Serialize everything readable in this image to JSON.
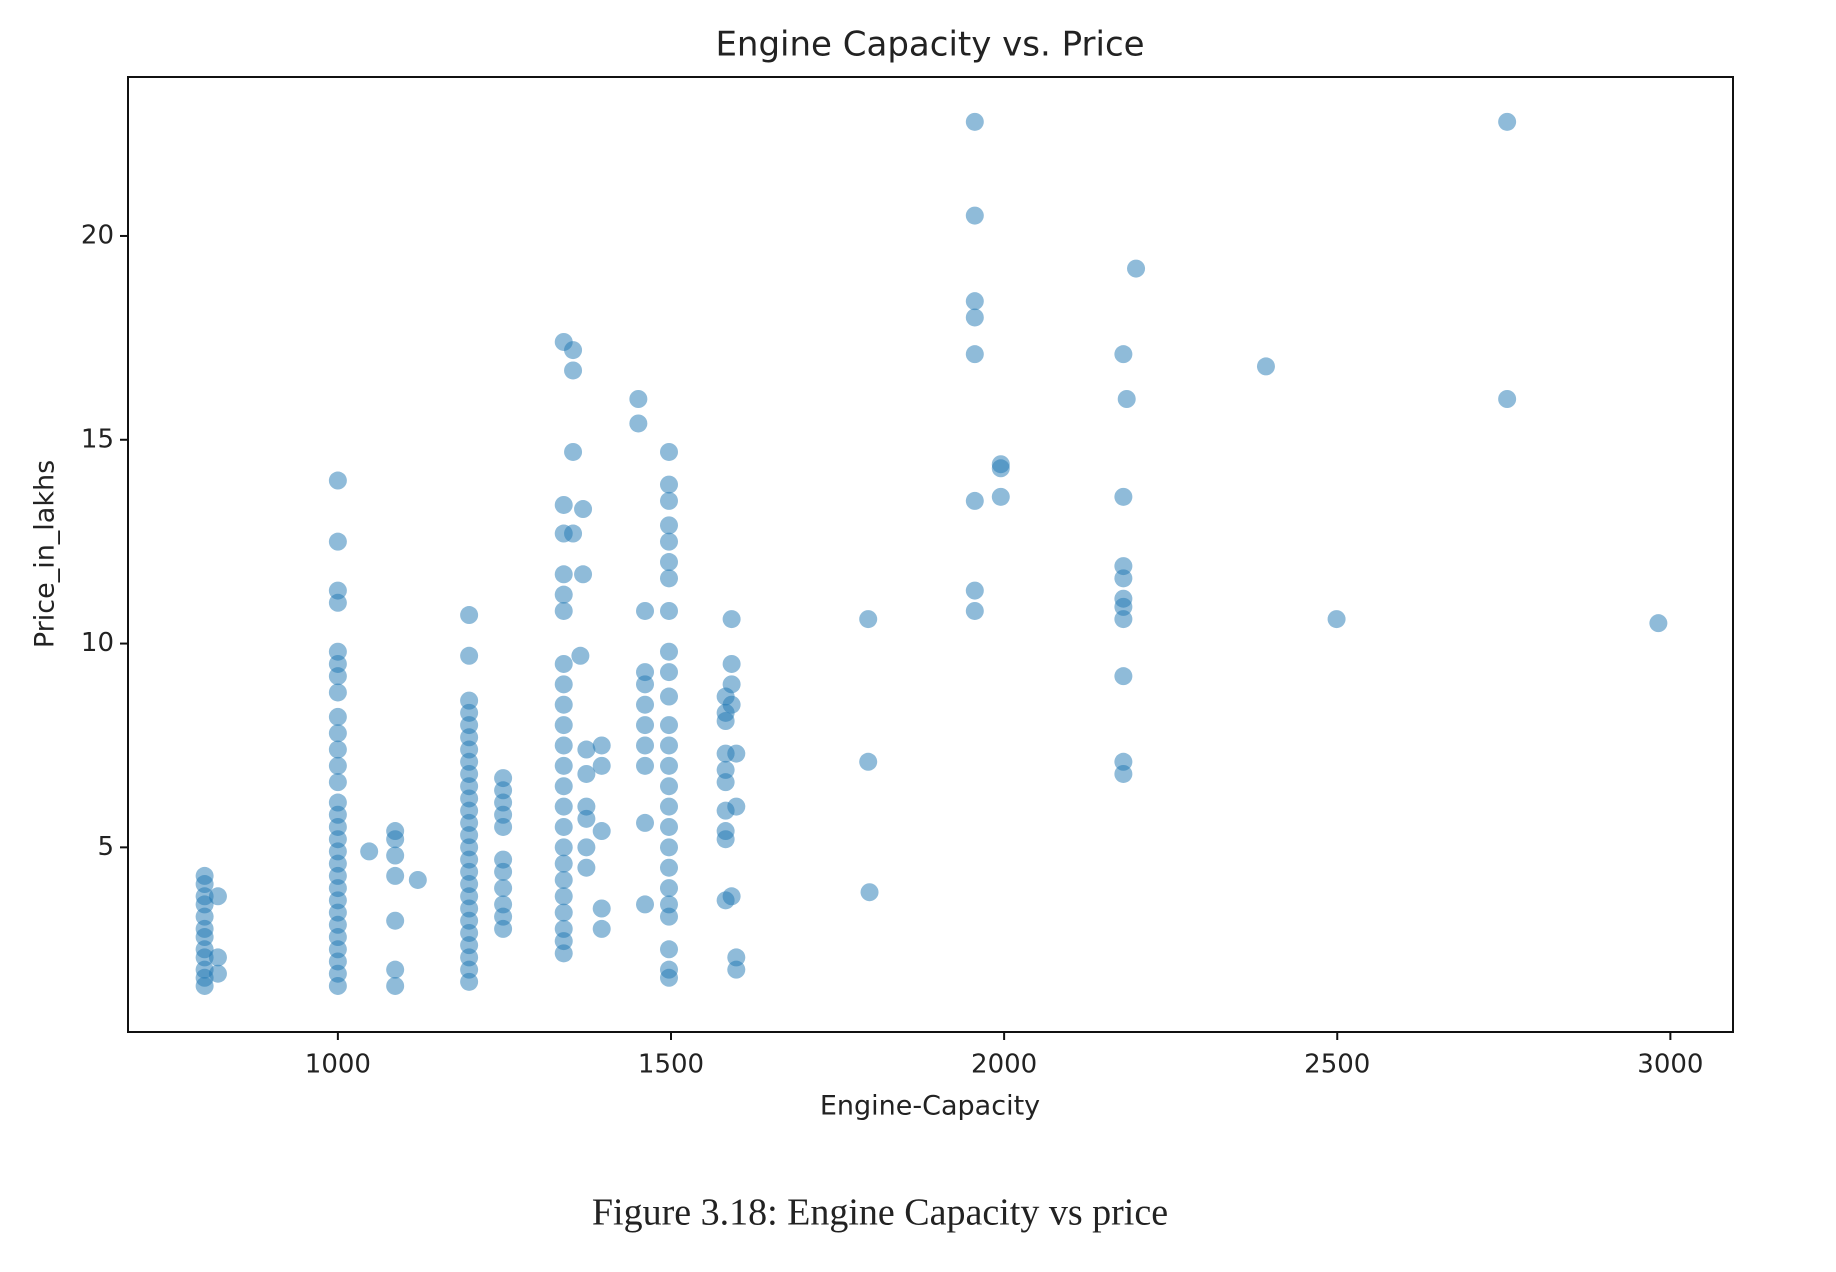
{
  "chart_data": {
    "type": "scatter",
    "title": "Engine Capacity vs. Price",
    "xlabel": "Engine-Capacity",
    "ylabel": "Price_in_lakhs",
    "caption": "Figure 3.18: Engine Capacity vs price",
    "color": "#1f77b4",
    "opacity": 0.5,
    "grid": false,
    "xlim": [
      685,
      3094
    ],
    "ylim": [
      0.47,
      23.9
    ],
    "xticks": [
      1000,
      1500,
      2000,
      2500,
      3000
    ],
    "yticks": [
      5,
      10,
      15,
      20
    ],
    "x": [
      800,
      800,
      800,
      800,
      800,
      800,
      800,
      800,
      800,
      800,
      800,
      800,
      820,
      820,
      820,
      1000,
      1000,
      1000,
      1000,
      1000,
      1000,
      1000,
      1000,
      1000,
      1000,
      1000,
      1000,
      1000,
      1000,
      1000,
      1000,
      1000,
      1000,
      1000,
      1000,
      1000,
      1000,
      1000,
      1000,
      1000,
      1000,
      1000,
      1000,
      1000,
      1047,
      1086,
      1086,
      1086,
      1086,
      1086,
      1086,
      1086,
      1120,
      1197,
      1197,
      1197,
      1197,
      1197,
      1197,
      1197,
      1197,
      1197,
      1197,
      1197,
      1197,
      1197,
      1197,
      1197,
      1197,
      1197,
      1197,
      1197,
      1197,
      1197,
      1197,
      1197,
      1197,
      1197,
      1197,
      1248,
      1248,
      1248,
      1248,
      1248,
      1248,
      1248,
      1248,
      1248,
      1248,
      1248,
      1339,
      1339,
      1339,
      1339,
      1339,
      1339,
      1339,
      1339,
      1339,
      1339,
      1339,
      1339,
      1339,
      1339,
      1339,
      1339,
      1339,
      1339,
      1339,
      1339,
      1339,
      1339,
      1339,
      1353,
      1353,
      1353,
      1353,
      1364,
      1368,
      1368,
      1373,
      1373,
      1373,
      1373,
      1373,
      1373,
      1396,
      1396,
      1396,
      1396,
      1396,
      1451,
      1451,
      1461,
      1461,
      1461,
      1461,
      1461,
      1461,
      1461,
      1461,
      1461,
      1497,
      1497,
      1497,
      1497,
      1497,
      1497,
      1497,
      1497,
      1497,
      1497,
      1497,
      1497,
      1497,
      1497,
      1497,
      1497,
      1497,
      1497,
      1497,
      1497,
      1497,
      1497,
      1497,
      1497,
      1497,
      1582,
      1582,
      1582,
      1582,
      1582,
      1582,
      1582,
      1582,
      1582,
      1582,
      1591,
      1591,
      1591,
      1591,
      1591,
      1598,
      1598,
      1598,
      1598,
      1796,
      1796,
      1798,
      1956,
      1956,
      1956,
      1956,
      1956,
      1956,
      1956,
      1956,
      1995,
      1995,
      1995,
      2179,
      2179,
      2179,
      2179,
      2179,
      2179,
      2179,
      2179,
      2179,
      2179,
      2184,
      2198,
      2393,
      2499,
      2755,
      2755,
      2982
    ],
    "values": [
      1.6,
      1.8,
      2.0,
      2.3,
      2.5,
      2.8,
      3.0,
      3.3,
      3.6,
      3.8,
      4.1,
      4.3,
      1.9,
      2.3,
      3.8,
      1.6,
      1.9,
      2.2,
      2.5,
      2.8,
      3.1,
      3.4,
      3.7,
      4.0,
      4.3,
      4.6,
      4.9,
      5.2,
      5.5,
      5.8,
      6.1,
      6.6,
      7.0,
      7.4,
      7.8,
      8.2,
      8.8,
      9.2,
      9.5,
      9.8,
      11.0,
      11.3,
      12.5,
      14.0,
      4.9,
      1.6,
      2.0,
      3.2,
      4.3,
      4.8,
      5.2,
      5.4,
      4.2,
      1.7,
      2.0,
      2.3,
      2.6,
      2.9,
      3.2,
      3.5,
      3.8,
      4.1,
      4.4,
      4.7,
      5.0,
      5.3,
      5.6,
      5.9,
      6.2,
      6.5,
      6.8,
      7.1,
      7.4,
      7.7,
      8.0,
      8.3,
      8.6,
      9.7,
      10.7,
      3.0,
      3.3,
      3.6,
      4.0,
      4.4,
      4.7,
      5.5,
      5.8,
      6.1,
      6.4,
      6.7,
      2.4,
      2.7,
      3.0,
      3.4,
      3.8,
      4.2,
      4.6,
      5.0,
      5.5,
      6.0,
      6.5,
      7.0,
      7.5,
      8.0,
      8.5,
      9.0,
      9.5,
      10.8,
      11.2,
      11.7,
      12.7,
      13.4,
      17.4,
      12.7,
      14.7,
      16.7,
      17.2,
      9.7,
      11.7,
      13.3,
      4.5,
      5.0,
      5.7,
      6.0,
      6.8,
      7.4,
      3.0,
      3.5,
      5.4,
      7.0,
      7.5,
      15.4,
      16.0,
      3.6,
      5.6,
      7.0,
      7.5,
      8.0,
      8.5,
      9.0,
      9.3,
      10.8,
      1.8,
      2.0,
      2.5,
      3.3,
      3.6,
      4.0,
      4.5,
      5.0,
      5.5,
      6.0,
      6.5,
      7.0,
      7.5,
      8.0,
      8.7,
      9.3,
      9.8,
      10.8,
      11.6,
      12.0,
      12.5,
      12.9,
      13.5,
      13.9,
      14.7,
      3.7,
      5.2,
      5.4,
      5.9,
      6.6,
      6.9,
      7.3,
      8.1,
      8.3,
      8.7,
      3.8,
      8.5,
      9.0,
      9.5,
      10.6,
      2.0,
      2.3,
      6.0,
      7.3,
      7.1,
      10.6,
      3.9,
      10.8,
      11.3,
      13.5,
      17.1,
      18.0,
      18.4,
      20.5,
      22.8,
      13.6,
      14.3,
      14.4,
      6.8,
      7.1,
      9.2,
      10.6,
      10.9,
      11.1,
      11.6,
      11.9,
      13.6,
      17.1,
      16.0,
      19.2,
      16.8,
      10.6,
      16.0,
      22.8,
      10.5
    ]
  }
}
